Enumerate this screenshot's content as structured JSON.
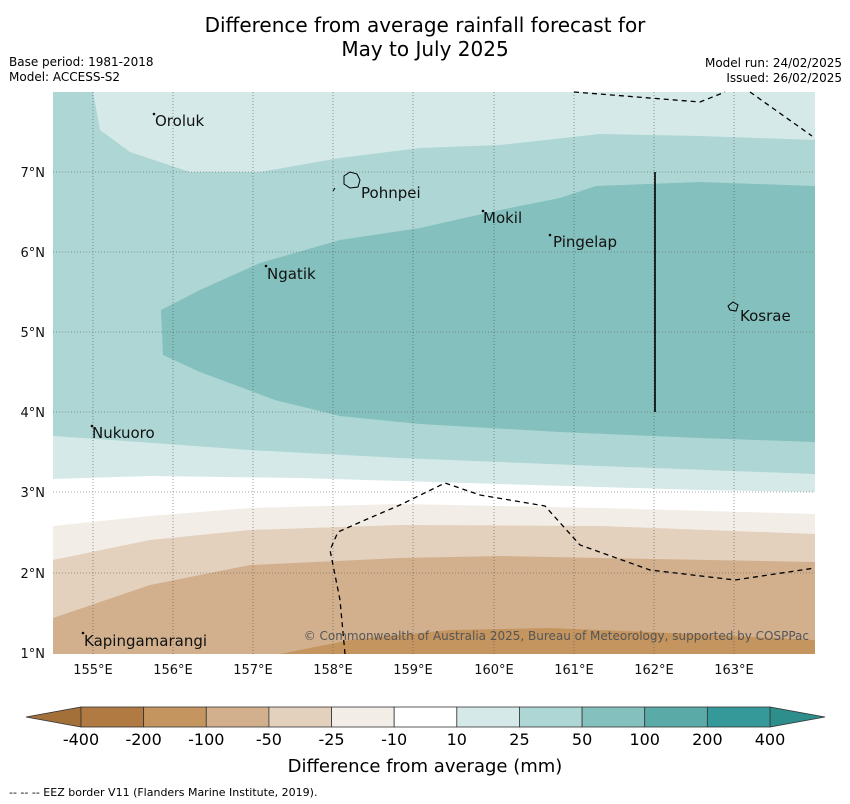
{
  "title_line1": "Difference from average rainfall forecast for",
  "title_line2": "May to July 2025",
  "base_period": "Base period: 1981-2018",
  "model": "Model: ACCESS-S2",
  "model_run": "Model run: 24/02/2025",
  "issued": "Issued: 26/02/2025",
  "places": {
    "oroluk": "Oroluk",
    "pohnpei": "Pohnpei",
    "mokil": "Mokil",
    "pingelap": "Pingelap",
    "ngatik": "Ngatik",
    "kosrae": "Kosrae",
    "nukuoro": "Nukuoro",
    "kapingamarangi": "Kapingamarangi"
  },
  "lat_ticks": [
    "7°N",
    "6°N",
    "5°N",
    "4°N",
    "3°N",
    "2°N",
    "1°N"
  ],
  "lon_ticks": [
    "155°E",
    "156°E",
    "157°E",
    "158°E",
    "159°E",
    "160°E",
    "161°E",
    "162°E",
    "163°E"
  ],
  "copyright": "© Commonwealth of Australia 2025, Bureau of Meteorology, supported by COSPPac",
  "colorbar": {
    "labels": [
      "-400",
      "-200",
      "-100",
      "-50",
      "-25",
      "-10",
      "10",
      "25",
      "50",
      "100",
      "200",
      "400"
    ],
    "colors": [
      "#b07a42",
      "#c4955f",
      "#d2b08e",
      "#e3d0bd",
      "#f2eee7",
      "#ffffff",
      "#d5e9e8",
      "#add6d4",
      "#84c0bd",
      "#5aaba7",
      "#35999a"
    ],
    "title": "Difference from average (mm)"
  },
  "footnote": "-- -- -- EEZ border V11 (Flanders Marine Institute, 2019)."
}
